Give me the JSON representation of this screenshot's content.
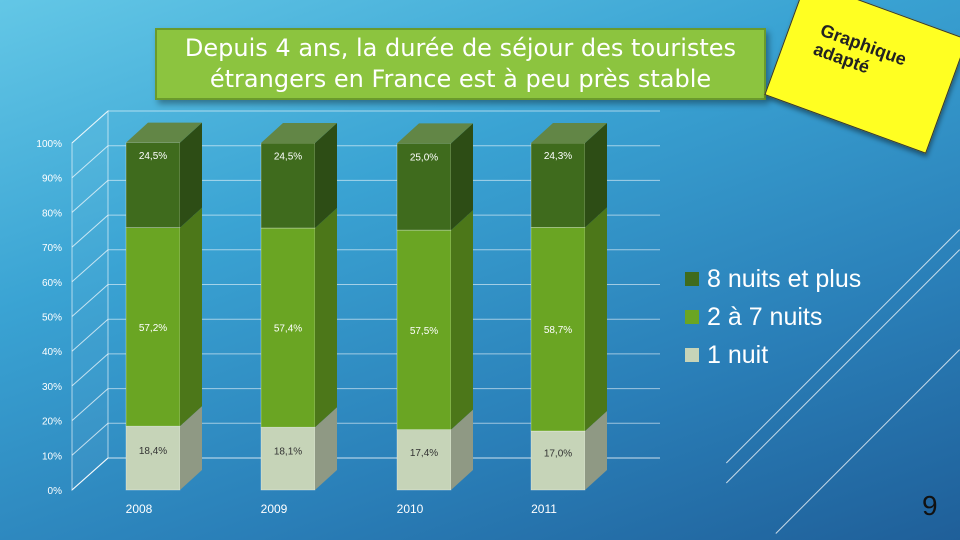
{
  "slide": {
    "title_line1": "Depuis 4 ans, la durée de séjour des touristes",
    "title_line2": "étrangers en France est à peu près stable",
    "sticky_text": "Graphique adapté",
    "page_number": "9"
  },
  "colors": {
    "series_8": "#3f6b1d",
    "series_2to7": "#6aa523",
    "series_1": "#c6d4b8",
    "title_bg": "#8cc43f"
  },
  "chart_data": {
    "type": "bar",
    "stacked": true,
    "categories": [
      "2008",
      "2009",
      "2010",
      "2011"
    ],
    "ylim": [
      0,
      100
    ],
    "yticks": [
      "0%",
      "10%",
      "20%",
      "30%",
      "40%",
      "50%",
      "60%",
      "70%",
      "80%",
      "90%",
      "100%"
    ],
    "series": [
      {
        "name": "1 nuit",
        "values": [
          18.4,
          18.1,
          17.4,
          17.0
        ],
        "labels": [
          "18,4%",
          "18,1%",
          "17,4%",
          "17,0%"
        ]
      },
      {
        "name": "2 à 7 nuits",
        "values": [
          57.2,
          57.4,
          57.5,
          58.7
        ],
        "labels": [
          "57,2%",
          "57,4%",
          "57,5%",
          "58,7%"
        ]
      },
      {
        "name": "8 nuits et plus",
        "values": [
          24.5,
          24.5,
          25.0,
          24.3
        ],
        "labels": [
          "24,5%",
          "24,5%",
          "25,0%",
          "24,3%"
        ]
      }
    ],
    "legend": [
      "8 nuits et plus",
      "2 à 7 nuits",
      "1 nuit"
    ]
  }
}
